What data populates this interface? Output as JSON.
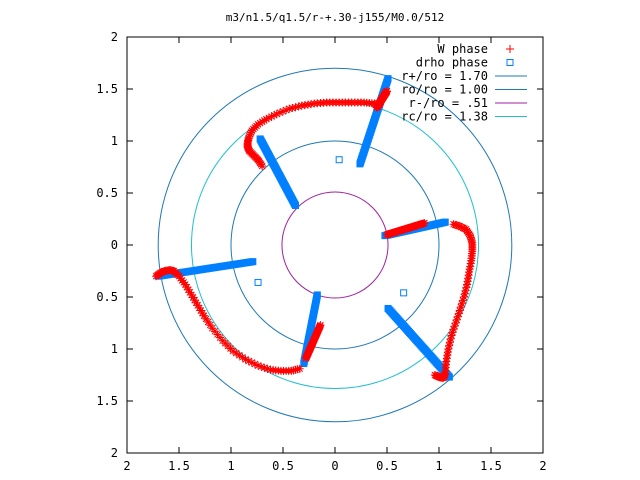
{
  "chart_data": {
    "type": "scatter",
    "title": "m3/n1.5/q1.5/r-+.30-j155/M0.0/512",
    "xlabel": "",
    "ylabel": "",
    "xlim": [
      -2,
      2
    ],
    "ylim": [
      -2,
      2
    ],
    "x_tick_labels": [
      "2",
      "1.5",
      "1",
      "0.5",
      "0",
      "0.5",
      "1",
      "1.5",
      "2"
    ],
    "y_tick_labels": [
      "2",
      "1.5",
      "1",
      "0.5",
      "0",
      "0.5",
      "1",
      "1.5",
      "2"
    ],
    "grid": false,
    "legend_position": "top-right",
    "series": [
      {
        "name": "W phase",
        "marker": "plus",
        "color": "#ff0000",
        "arms": [
          {
            "from": [
              0.5,
              1.48
            ],
            "to": [
              0.4,
              1.32
            ],
            "ridge": [
              [
                0.43,
                1.35
              ],
              [
                0.38,
                1.36
              ],
              [
                0.28,
                1.37
              ],
              [
                0.16,
                1.37
              ],
              [
                0.04,
                1.37
              ],
              [
                -0.08,
                1.37
              ],
              [
                -0.2,
                1.36
              ],
              [
                -0.32,
                1.34
              ],
              [
                -0.44,
                1.31
              ],
              [
                -0.56,
                1.26
              ],
              [
                -0.66,
                1.21
              ],
              [
                -0.74,
                1.16
              ],
              [
                -0.8,
                1.1
              ],
              [
                -0.83,
                1.03
              ],
              [
                -0.84,
                0.98
              ],
              [
                -0.84,
                0.94
              ],
              [
                -0.82,
                0.9
              ],
              [
                -0.78,
                0.86
              ],
              [
                -0.74,
                0.82
              ],
              [
                -0.7,
                0.76
              ]
            ]
          },
          {
            "from": [
              0.5,
              0.1
            ],
            "to": [
              0.86,
              0.21
            ],
            "ridge": [
              [
                1.14,
                0.2
              ],
              [
                1.2,
                0.18
              ],
              [
                1.26,
                0.15
              ],
              [
                1.3,
                0.09
              ],
              [
                1.32,
                0.02
              ],
              [
                1.32,
                -0.06
              ],
              [
                1.31,
                -0.15
              ],
              [
                1.29,
                -0.26
              ],
              [
                1.27,
                -0.38
              ],
              [
                1.24,
                -0.5
              ],
              [
                1.2,
                -0.63
              ],
              [
                1.16,
                -0.75
              ],
              [
                1.12,
                -0.87
              ],
              [
                1.09,
                -1.0
              ],
              [
                1.07,
                -1.12
              ],
              [
                1.06,
                -1.24
              ],
              [
                1.04,
                -1.28
              ],
              [
                1.0,
                -1.27
              ],
              [
                0.96,
                -1.25
              ]
            ]
          },
          {
            "from": [
              -0.28,
              -1.09
            ],
            "to": [
              -0.14,
              -0.77
            ],
            "ridge": [
              [
                -0.34,
                -1.19
              ],
              [
                -0.42,
                -1.21
              ],
              [
                -0.52,
                -1.21
              ],
              [
                -0.62,
                -1.2
              ],
              [
                -0.74,
                -1.16
              ],
              [
                -0.86,
                -1.1
              ],
              [
                -0.98,
                -1.02
              ],
              [
                -1.08,
                -0.92
              ],
              [
                -1.18,
                -0.8
              ],
              [
                -1.26,
                -0.68
              ],
              [
                -1.32,
                -0.58
              ],
              [
                -1.38,
                -0.48
              ],
              [
                -1.44,
                -0.38
              ],
              [
                -1.5,
                -0.3
              ],
              [
                -1.55,
                -0.25
              ],
              [
                -1.59,
                -0.24
              ],
              [
                -1.64,
                -0.25
              ],
              [
                -1.68,
                -0.27
              ],
              [
                -1.72,
                -0.3
              ]
            ]
          }
        ]
      },
      {
        "name": "drho phase",
        "marker": "square",
        "color": "#0080ff",
        "arms": [
          {
            "from": [
              0.24,
              0.78
            ],
            "to": [
              0.51,
              1.6
            ]
          },
          {
            "from": [
              -0.72,
              1.02
            ],
            "to": [
              -0.38,
              0.38
            ]
          },
          {
            "from": [
              0.48,
              0.09
            ],
            "to": [
              1.06,
              0.22
            ]
          },
          {
            "from": [
              0.51,
              -0.61
            ],
            "to": [
              1.1,
              -1.27
            ]
          },
          {
            "from": [
              -0.3,
              -1.14
            ],
            "to": [
              -0.17,
              -0.48
            ]
          },
          {
            "from": [
              -1.7,
              -0.3
            ],
            "to": [
              -0.79,
              -0.16
            ]
          }
        ],
        "points": [
          [
            0.04,
            0.82
          ],
          [
            0.66,
            -0.46
          ],
          [
            -0.74,
            -0.36
          ]
        ]
      }
    ],
    "circles": [
      {
        "name": "r+/ro = 1.70",
        "radius": 1.7,
        "color": "#1f78b4"
      },
      {
        "name": "ro/ro = 1.00",
        "radius": 1.0,
        "color": "#1f78b4"
      },
      {
        "name": "r-/ro =  .51",
        "radius": 0.51,
        "color": "#a020a0"
      },
      {
        "name": "rc/ro = 1.38",
        "radius": 1.38,
        "color": "#20c0d0"
      }
    ]
  }
}
